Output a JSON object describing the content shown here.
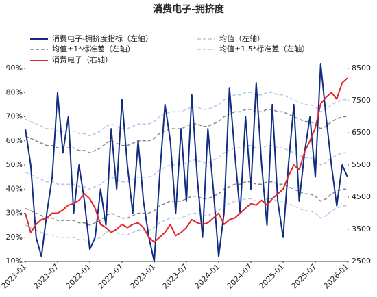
{
  "chart_data": {
    "type": "line",
    "title": "消费电子-拥挤度",
    "x": [
      "2021-01",
      "2021-02",
      "2021-03",
      "2021-04",
      "2021-05",
      "2021-06",
      "2021-07",
      "2021-08",
      "2021-09",
      "2021-10",
      "2021-11",
      "2021-12",
      "2022-01",
      "2022-02",
      "2022-03",
      "2022-04",
      "2022-05",
      "2022-06",
      "2022-07",
      "2022-08",
      "2022-09",
      "2022-10",
      "2022-11",
      "2022-12",
      "2023-01",
      "2023-02",
      "2023-03",
      "2023-04",
      "2023-05",
      "2023-06",
      "2023-07",
      "2023-08",
      "2023-09",
      "2023-10",
      "2023-11",
      "2023-12",
      "2024-01",
      "2024-02",
      "2024-03",
      "2024-04",
      "2024-05",
      "2024-06",
      "2024-07",
      "2024-08",
      "2024-09",
      "2024-10",
      "2024-11",
      "2024-12",
      "2025-01",
      "2025-02",
      "2025-03",
      "2025-04",
      "2025-05",
      "2025-06",
      "2025-07",
      "2025-08",
      "2025-09",
      "2025-10",
      "2025-11",
      "2025-12",
      "2026-01"
    ],
    "xlim": [
      "2021-01",
      "2026-01"
    ],
    "xticks": [
      "2021-01",
      "2021-07",
      "2022-01",
      "2022-07",
      "2023-01",
      "2023-07",
      "2024-01",
      "2024-07",
      "2025-01",
      "2025-07",
      "2026-01"
    ],
    "ylim": [
      10,
      90
    ],
    "yticks": [
      {
        "value": 10,
        "label": "10%"
      },
      {
        "value": 20,
        "label": "20%"
      },
      {
        "value": 30,
        "label": "30%"
      },
      {
        "value": 40,
        "label": "40%"
      },
      {
        "value": 50,
        "label": "50%"
      },
      {
        "value": 60,
        "label": "60%"
      },
      {
        "value": 70,
        "label": "70%"
      },
      {
        "value": 80,
        "label": "80%"
      },
      {
        "value": 90,
        "label": "90%"
      }
    ],
    "y2lim": [
      2500,
      8500
    ],
    "y2ticks": [
      2500,
      3500,
      4500,
      5500,
      6500,
      7500,
      8500
    ],
    "series": [
      {
        "name": "消费电子-拥挤度指标（左轴）",
        "color": "#112d82",
        "dash": false,
        "width": 2,
        "values": [
          65,
          50,
          20,
          12,
          30,
          45,
          80,
          55,
          70,
          30,
          50,
          35,
          15,
          20,
          40,
          25,
          65,
          40,
          77,
          50,
          30,
          60,
          35,
          20,
          10,
          45,
          75,
          60,
          30,
          65,
          35,
          79,
          45,
          20,
          65,
          40,
          12,
          30,
          82,
          55,
          30,
          70,
          40,
          84,
          50,
          25,
          75,
          35,
          20,
          50,
          75,
          35,
          55,
          70,
          45,
          92,
          70,
          50,
          33,
          50,
          45
        ]
      },
      {
        "name": "均值（左轴）",
        "color": "#b4c6ea",
        "dash": true,
        "width": 1.5,
        "values": [
          47,
          46,
          45,
          44,
          43,
          43,
          42,
          42,
          42,
          42,
          41,
          41,
          40,
          41,
          42,
          44,
          45,
          44,
          43,
          43,
          44,
          45,
          45,
          45,
          46,
          48,
          49,
          50,
          50,
          50,
          51,
          52,
          52,
          51,
          51,
          52,
          53,
          55,
          56,
          57,
          57,
          58,
          58,
          57,
          57,
          58,
          58,
          57,
          57,
          56,
          55,
          54,
          53,
          53,
          52,
          50,
          51,
          53,
          54,
          55,
          55
        ]
      },
      {
        "name": "均值±1*标准差（左轴）",
        "color": "#858585",
        "dash": true,
        "width": 1.5,
        "upper": [
          62,
          61,
          60,
          59,
          58,
          58,
          57,
          57,
          57,
          57,
          56,
          56,
          55,
          56,
          57,
          59,
          60,
          59,
          58,
          58,
          59,
          60,
          60,
          60,
          61,
          63,
          64,
          65,
          65,
          65,
          66,
          67,
          67,
          66,
          66,
          67,
          68,
          70,
          71,
          72,
          72,
          73,
          73,
          72,
          72,
          73,
          73,
          72,
          72,
          71,
          70,
          69,
          68,
          68,
          67,
          65,
          66,
          68,
          69,
          70,
          70
        ],
        "lower": [
          32,
          31,
          30,
          29,
          28,
          28,
          27,
          27,
          27,
          27,
          26,
          26,
          25,
          26,
          27,
          29,
          30,
          29,
          28,
          28,
          29,
          30,
          30,
          30,
          31,
          33,
          34,
          35,
          35,
          35,
          36,
          37,
          37,
          36,
          36,
          37,
          38,
          40,
          41,
          42,
          42,
          43,
          43,
          42,
          42,
          43,
          43,
          42,
          42,
          41,
          40,
          39,
          38,
          38,
          37,
          35,
          36,
          38,
          39,
          40,
          40
        ]
      },
      {
        "name": "均值±1.5*标准差（左轴）",
        "color": "#b4c6ea",
        "dash": true,
        "width": 1.5,
        "upper": [
          69,
          68,
          67,
          66,
          65,
          65,
          64,
          64,
          64,
          64,
          63,
          63,
          62,
          63,
          64,
          66,
          67,
          66,
          65,
          65,
          66,
          67,
          67,
          67,
          68,
          70,
          71,
          72,
          72,
          72,
          73,
          74,
          74,
          73,
          73,
          74,
          75,
          77,
          78,
          79,
          79,
          80,
          80,
          79,
          79,
          80,
          80,
          79,
          79,
          78,
          77,
          76,
          75,
          75,
          74,
          72,
          73,
          75,
          76,
          77,
          77
        ],
        "lower": [
          25,
          24,
          23,
          22,
          21,
          21,
          20,
          20,
          20,
          20,
          19,
          19,
          18,
          19,
          20,
          22,
          23,
          22,
          21,
          21,
          22,
          23,
          23,
          23,
          24,
          26,
          27,
          28,
          28,
          28,
          29,
          30,
          30,
          29,
          29,
          30,
          31,
          33,
          34,
          35,
          35,
          36,
          36,
          35,
          35,
          36,
          36,
          35,
          35,
          34,
          33,
          32,
          31,
          31,
          30,
          28,
          29,
          31,
          32,
          33,
          33
        ]
      },
      {
        "name": "消费电子（右轴）",
        "color": "#e3262b",
        "dash": false,
        "width": 2,
        "axis": "y2",
        "values": [
          4000,
          3400,
          3650,
          3800,
          3850,
          4000,
          4000,
          4100,
          4250,
          4300,
          4400,
          4600,
          4450,
          4150,
          3650,
          3550,
          3400,
          3500,
          3650,
          3550,
          3650,
          3700,
          3550,
          3250,
          3100,
          3250,
          3400,
          3650,
          3300,
          3400,
          3550,
          3800,
          3700,
          3650,
          3700,
          3850,
          4000,
          3650,
          3800,
          3850,
          4000,
          4150,
          4300,
          4250,
          4400,
          4250,
          4450,
          4600,
          4750,
          5150,
          5500,
          5350,
          5900,
          6250,
          6650,
          7400,
          7600,
          7750,
          7550,
          8050,
          8200
        ]
      }
    ]
  }
}
